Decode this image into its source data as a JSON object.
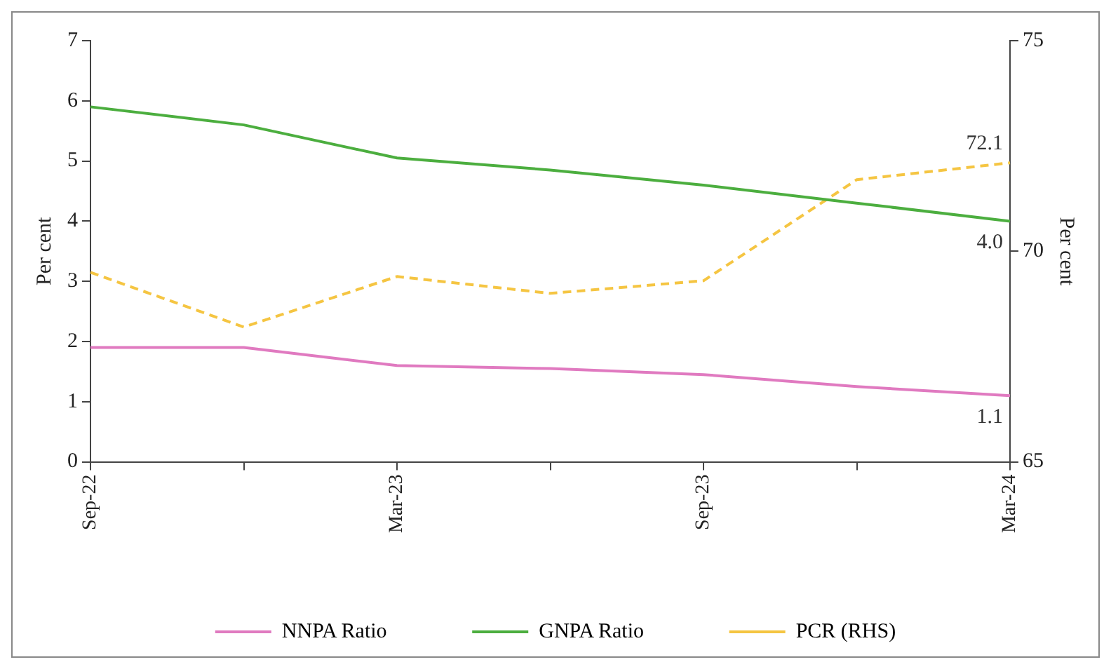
{
  "chart_data": {
    "type": "line",
    "categories": [
      "Sep-22",
      null,
      "Mar-23",
      null,
      "Sep-23",
      null,
      "Mar-24"
    ],
    "ylabel": "Per cent",
    "y2label": "Per cent",
    "ylim": [
      0,
      7
    ],
    "yticks": [
      0,
      1,
      2,
      3,
      4,
      5,
      6,
      7
    ],
    "y2lim": [
      65,
      75
    ],
    "y2ticks": [
      65,
      70,
      75
    ],
    "legend": "bottom",
    "series": [
      {
        "name": "NNPA Ratio",
        "color": "#e07ac0",
        "values": [
          1.9,
          1.9,
          1.6,
          1.55,
          1.45,
          1.25,
          1.1
        ],
        "value_labels": [
          null,
          null,
          null,
          null,
          null,
          null,
          "1.1"
        ]
      },
      {
        "name": "GNPA Ratio",
        "color": "#4cae3f",
        "values": [
          5.9,
          5.6,
          5.05,
          4.85,
          4.6,
          4.3,
          4.0
        ],
        "value_labels": [
          null,
          null,
          null,
          null,
          null,
          null,
          "4.0"
        ]
      },
      {
        "name": "PCR (RHS)",
        "color": "#f5c542",
        "axis": "y2",
        "line_style": "dashed",
        "values": [
          69.5,
          68.2,
          69.4,
          69.0,
          69.3,
          71.7,
          72.1
        ],
        "value_labels": [
          null,
          null,
          null,
          null,
          null,
          null,
          "72.1"
        ]
      }
    ]
  }
}
